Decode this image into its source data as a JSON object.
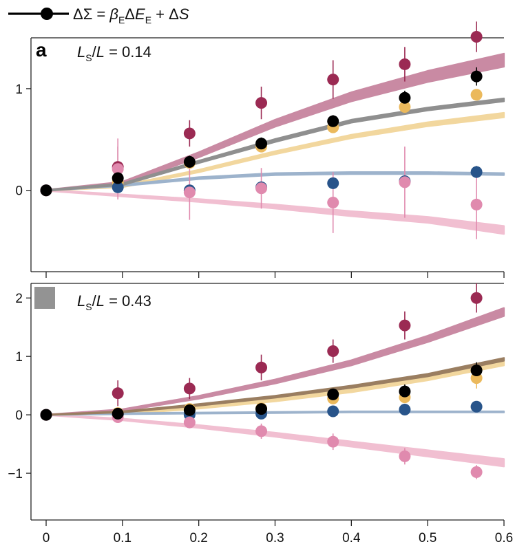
{
  "legend": {
    "label_parts": [
      {
        "t": "ΔΣ = "
      },
      {
        "t": "β",
        "it": true
      },
      {
        "t": "E",
        "sub": true
      },
      {
        "t": "Δ"
      },
      {
        "t": "E",
        "it": true
      },
      {
        "t": "E",
        "sub": true
      },
      {
        "t": " + Δ"
      },
      {
        "t": "S",
        "it": true
      }
    ],
    "line_color": "#000000"
  },
  "colors": {
    "crimson": "#9b2a53",
    "black": "#000000",
    "gold": "#ebb95c",
    "blue": "#28548a",
    "pink": "#e08aae",
    "crimson_band": "#c98aa3",
    "gray_band": "#8f8f8f",
    "gold_band": "#f2d79e",
    "blue_band": "#9db3cc",
    "pink_band": "#f1bfd1",
    "brown_band": "#9a7e61",
    "panel_box": "#939393"
  },
  "chart_data": [
    {
      "type": "scatter",
      "panel_letter": "a",
      "annotation_parts": [
        {
          "t": "L",
          "it": true
        },
        {
          "t": "S",
          "sub": true
        },
        {
          "t": "/"
        },
        {
          "t": "L",
          "it": true
        },
        {
          "t": " = 0.14"
        }
      ],
      "xlim": [
        0,
        0.6
      ],
      "ylim": [
        -0.8,
        1.5
      ],
      "yticks": [
        -1,
        0,
        1
      ],
      "ytick_labels": [
        "",
        "0",
        "1"
      ],
      "xticks": [
        0,
        0.1,
        0.2,
        0.3,
        0.4,
        0.5,
        0.6
      ],
      "xtick_labels": [],
      "series": [
        {
          "color_key": "crimson",
          "x": [
            0,
            0.094,
            0.188,
            0.282,
            0.376,
            0.47,
            0.564
          ],
          "y": [
            0,
            0.23,
            0.56,
            0.86,
            1.09,
            1.24,
            1.51
          ],
          "err": [
            0,
            0.2,
            0.13,
            0.16,
            0.19,
            0.17,
            0.15
          ]
        },
        {
          "color_key": "gold",
          "x": [
            0,
            0.094,
            0.188,
            0.282,
            0.376,
            0.47,
            0.564
          ],
          "y": [
            0,
            0.08,
            0.27,
            0.43,
            0.62,
            0.82,
            0.94
          ],
          "err": [
            0,
            0.05,
            0.05,
            0.05,
            0.05,
            0.05,
            0.05
          ]
        },
        {
          "color_key": "blue",
          "x": [
            0,
            0.094,
            0.188,
            0.282,
            0.376,
            0.47,
            0.564
          ],
          "y": [
            0,
            0.03,
            0.0,
            0.03,
            0.07,
            0.09,
            0.18
          ],
          "err": [
            0,
            0.04,
            0.04,
            0.04,
            0.04,
            0.04,
            0.06
          ]
        },
        {
          "color_key": "pink",
          "x": [
            0,
            0.094,
            0.188,
            0.282,
            0.376,
            0.47,
            0.564
          ],
          "y": [
            0,
            0.21,
            -0.02,
            0.02,
            -0.12,
            0.08,
            -0.14
          ],
          "err": [
            0,
            0.3,
            0.27,
            0.2,
            0.3,
            0.35,
            0.34
          ]
        },
        {
          "color_key": "black",
          "x": [
            0,
            0.094,
            0.188,
            0.282,
            0.376,
            0.47,
            0.564
          ],
          "y": [
            0,
            0.12,
            0.28,
            0.46,
            0.68,
            0.91,
            1.12
          ],
          "err": [
            0,
            0.05,
            0.06,
            0.06,
            0.06,
            0.07,
            0.09
          ]
        }
      ],
      "bands": [
        {
          "color_key": "pink_band",
          "x": [
            0,
            0.1,
            0.2,
            0.3,
            0.4,
            0.5,
            0.6
          ],
          "y": [
            0,
            -0.05,
            -0.1,
            -0.16,
            -0.23,
            -0.29,
            -0.39
          ],
          "width": [
            0.01,
            0.02,
            0.03,
            0.04,
            0.05,
            0.06,
            0.08
          ]
        },
        {
          "color_key": "gold_band",
          "x": [
            0,
            0.1,
            0.2,
            0.3,
            0.4,
            0.5,
            0.6
          ],
          "y": [
            0,
            0.04,
            0.19,
            0.37,
            0.53,
            0.65,
            0.74
          ],
          "width": [
            0.01,
            0.02,
            0.025,
            0.03,
            0.035,
            0.04,
            0.045
          ]
        },
        {
          "color_key": "blue_band",
          "x": [
            0,
            0.1,
            0.2,
            0.3,
            0.4,
            0.5,
            0.6
          ],
          "y": [
            0,
            0.05,
            0.12,
            0.16,
            0.17,
            0.17,
            0.16
          ],
          "width": [
            0.01,
            0.015,
            0.02,
            0.02,
            0.02,
            0.02,
            0.02
          ]
        },
        {
          "color_key": "crimson_band",
          "x": [
            0,
            0.1,
            0.2,
            0.3,
            0.4,
            0.5,
            0.6
          ],
          "y": [
            0,
            0.07,
            0.35,
            0.66,
            0.92,
            1.12,
            1.28
          ],
          "width": [
            0.01,
            0.03,
            0.05,
            0.07,
            0.09,
            0.11,
            0.13
          ]
        },
        {
          "color_key": "gray_band",
          "x": [
            0,
            0.1,
            0.2,
            0.3,
            0.4,
            0.5,
            0.6
          ],
          "y": [
            0,
            0.06,
            0.28,
            0.49,
            0.68,
            0.8,
            0.89
          ],
          "width": [
            0.01,
            0.02,
            0.025,
            0.03,
            0.03,
            0.03,
            0.03
          ]
        }
      ]
    },
    {
      "type": "scatter",
      "panel_letter": "",
      "annotation_parts": [
        {
          "t": "L",
          "it": true
        },
        {
          "t": "S",
          "sub": true
        },
        {
          "t": "/"
        },
        {
          "t": "L",
          "it": true
        },
        {
          "t": " = 0.43"
        }
      ],
      "xlim": [
        0,
        0.6
      ],
      "ylim": [
        -1.8,
        2.25
      ],
      "yticks": [
        -1,
        0,
        1,
        2
      ],
      "ytick_labels": [
        "−1",
        "0",
        "1",
        "2"
      ],
      "xticks": [
        0,
        0.1,
        0.2,
        0.3,
        0.4,
        0.5,
        0.6
      ],
      "xtick_labels": [
        "0",
        "0.1",
        "0.2",
        "0.3",
        "0.4",
        "0.5",
        "0.6"
      ],
      "series": [
        {
          "color_key": "crimson",
          "x": [
            0,
            0.094,
            0.188,
            0.282,
            0.376,
            0.47,
            0.564
          ],
          "y": [
            0,
            0.37,
            0.45,
            0.81,
            1.09,
            1.53,
            2.0
          ],
          "err": [
            0,
            0.22,
            0.18,
            0.22,
            0.2,
            0.24,
            0.25
          ]
        },
        {
          "color_key": "gold",
          "x": [
            0,
            0.094,
            0.188,
            0.282,
            0.376,
            0.47,
            0.564
          ],
          "y": [
            0,
            0.03,
            0.1,
            0.11,
            0.28,
            0.3,
            0.63
          ],
          "err": [
            0,
            0.05,
            0.06,
            0.06,
            0.08,
            0.1,
            0.18
          ]
        },
        {
          "color_key": "blue",
          "x": [
            0,
            0.094,
            0.188,
            0.282,
            0.376,
            0.47,
            0.564
          ],
          "y": [
            0,
            0.0,
            0.0,
            0.02,
            0.06,
            0.09,
            0.14
          ],
          "err": [
            0,
            0.04,
            0.05,
            0.05,
            0.06,
            0.06,
            0.05
          ]
        },
        {
          "color_key": "pink",
          "x": [
            0,
            0.094,
            0.188,
            0.282,
            0.376,
            0.47,
            0.564
          ],
          "y": [
            0,
            -0.04,
            -0.13,
            -0.28,
            -0.46,
            -0.71,
            -0.98
          ],
          "err": [
            0,
            0.05,
            0.1,
            0.13,
            0.14,
            0.14,
            0.12
          ]
        },
        {
          "color_key": "black",
          "x": [
            0,
            0.094,
            0.188,
            0.282,
            0.376,
            0.47,
            0.564
          ],
          "y": [
            0,
            0.02,
            0.08,
            0.1,
            0.35,
            0.4,
            0.76
          ],
          "err": [
            0,
            0.05,
            0.06,
            0.08,
            0.1,
            0.12,
            0.14
          ]
        }
      ],
      "bands": [
        {
          "color_key": "pink_band",
          "x": [
            0,
            0.1,
            0.2,
            0.3,
            0.4,
            0.5,
            0.6
          ],
          "y": [
            0,
            -0.08,
            -0.2,
            -0.34,
            -0.5,
            -0.66,
            -0.82
          ],
          "width": [
            0.01,
            0.03,
            0.05,
            0.07,
            0.09,
            0.11,
            0.13
          ]
        },
        {
          "color_key": "gold_band",
          "x": [
            0,
            0.1,
            0.2,
            0.3,
            0.4,
            0.5,
            0.6
          ],
          "y": [
            0,
            0.02,
            0.12,
            0.25,
            0.41,
            0.62,
            0.88
          ],
          "width": [
            0.01,
            0.02,
            0.03,
            0.04,
            0.05,
            0.06,
            0.07
          ]
        },
        {
          "color_key": "blue_band",
          "x": [
            0,
            0.1,
            0.2,
            0.3,
            0.4,
            0.5,
            0.6
          ],
          "y": [
            0,
            0.02,
            0.03,
            0.04,
            0.05,
            0.05,
            0.05
          ],
          "width": [
            0.01,
            0.02,
            0.02,
            0.02,
            0.02,
            0.02,
            0.02
          ]
        },
        {
          "color_key": "crimson_band",
          "x": [
            0,
            0.1,
            0.2,
            0.3,
            0.4,
            0.5,
            0.6
          ],
          "y": [
            0,
            0.08,
            0.3,
            0.57,
            0.89,
            1.3,
            1.76
          ],
          "width": [
            0.01,
            0.03,
            0.05,
            0.07,
            0.09,
            0.11,
            0.14
          ]
        },
        {
          "color_key": "brown_band",
          "x": [
            0,
            0.1,
            0.2,
            0.3,
            0.4,
            0.5,
            0.6
          ],
          "y": [
            0,
            0.05,
            0.17,
            0.31,
            0.48,
            0.68,
            0.95
          ],
          "width": [
            0.01,
            0.02,
            0.03,
            0.035,
            0.04,
            0.045,
            0.05
          ]
        }
      ]
    }
  ]
}
